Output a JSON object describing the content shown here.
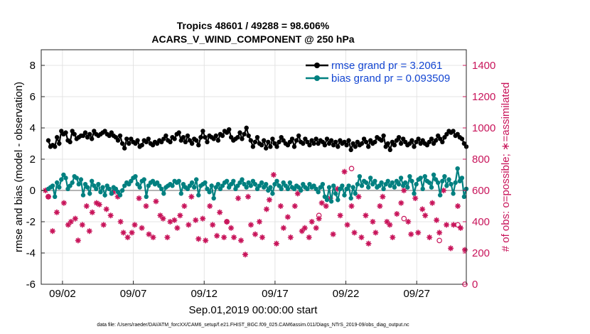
{
  "chart_data": {
    "type": "line",
    "title": [
      "Tropics 48601 / 49288 = 98.606%",
      "ACARS_V_WIND_COMPONENT @ 250 hPa"
    ],
    "xlabel": "Sep.01,2019 00:00:00 start",
    "ylabel": "rmse and bias (model - observation)",
    "y2label": "# of obs: o=possible; ∗=assimilated",
    "footnote": "data file: /Users/raeder/DAI/ATM_forcXX/CAM6_setup/f.e21.FHIST_BGC.f09_025.CAM6assim.011/Diags_NTrS_2019-09/obs_diag_output.nc",
    "xlim": [
      0.5,
      30.5
    ],
    "ylim": [
      -6,
      9
    ],
    "y2lim": [
      0,
      1500
    ],
    "x_ticks": [
      {
        "label": "09/02",
        "value": 2
      },
      {
        "label": "09/07",
        "value": 7
      },
      {
        "label": "09/12",
        "value": 12
      },
      {
        "label": "09/17",
        "value": 17
      },
      {
        "label": "09/22",
        "value": 22
      },
      {
        "label": "09/27",
        "value": 27
      }
    ],
    "y_ticks": [
      -6,
      -4,
      -2,
      0,
      2,
      4,
      6,
      8
    ],
    "y2_ticks": [
      0,
      200,
      400,
      600,
      800,
      1000,
      1200,
      1400
    ],
    "legend": [
      "rmse grand pr = 3.2061",
      "bias grand pr = 0.093509"
    ],
    "colors": {
      "rmse": "#000000",
      "bias": "#008080",
      "obs": "#c8145a",
      "zero": "#b4b4b4",
      "legend_text": "#1446d2"
    },
    "series": [
      {
        "name": "rmse",
        "values": [
          3.2,
          2.8,
          2.9,
          2.8,
          3.4,
          3.0,
          3.8,
          3.6,
          3.7,
          3.2,
          3.1,
          3.8,
          3.6,
          3.3,
          3.4,
          3.5,
          3.5,
          3.7,
          3.4,
          3.6,
          3.3,
          3.8,
          3.6,
          3.5,
          3.6,
          3.7,
          3.8,
          3.6,
          3.5,
          3.7,
          3.5,
          3.4,
          3.2,
          3.5,
          3.0,
          2.7,
          3.3,
          3.0,
          3.3,
          3.1,
          3.0,
          3.2,
          2.8,
          2.9,
          3.2,
          3.1,
          3.3,
          3.0,
          2.9,
          3.1,
          3.0,
          3.2,
          3.1,
          3.3,
          3.5,
          3.2,
          3.1,
          3.4,
          3.3,
          3.6,
          3.7,
          3.2,
          3.4,
          3.1,
          3.5,
          3.2,
          3.0,
          3.3,
          3.2,
          2.9,
          3.4,
          3.8,
          3.4,
          3.1,
          3.5,
          3.4,
          3.3,
          3.5,
          3.2,
          3.6,
          3.5,
          3.8,
          3.7,
          3.9,
          3.4,
          3.2,
          3.3,
          3.4,
          3.7,
          3.3,
          3.6,
          4.0,
          3.5,
          3.2,
          2.8,
          3.1,
          3.4,
          3.0,
          2.9,
          3.2,
          2.7,
          3.1,
          2.8,
          3.3,
          3.0,
          2.8,
          3.1,
          3.4,
          3.2,
          3.0,
          2.9,
          3.1,
          3.3,
          2.8,
          3.2,
          3.5,
          3.1,
          3.0,
          3.3,
          3.1,
          2.9,
          3.2,
          3.0,
          3.3,
          3.0,
          3.2,
          3.1,
          2.9,
          3.3,
          3.0,
          3.2,
          2.9,
          3.1,
          2.8,
          3.2,
          3.0,
          3.1,
          2.9,
          3.2,
          2.6,
          3.0,
          2.8,
          3.1,
          2.9,
          3.0,
          3.3,
          3.1,
          2.8,
          3.2,
          3.0,
          3.1,
          3.4,
          3.3,
          3.2,
          3.5,
          2.8,
          3.0,
          2.6,
          3.1,
          2.9,
          3.2,
          3.4,
          3.0,
          3.3,
          3.1,
          2.9,
          3.0,
          3.2,
          2.8,
          3.1,
          3.3,
          3.0,
          3.2,
          3.0,
          2.9,
          3.1,
          3.3,
          3.0,
          3.2,
          3.5,
          3.3,
          3.1,
          3.4,
          3.6,
          3.8,
          3.7,
          3.8,
          3.5,
          3.6,
          3.4,
          3.3,
          3.0,
          2.8
        ]
      },
      {
        "name": "bias",
        "values": [
          0.1,
          0.2,
          0.3,
          -0.4,
          0.5,
          0.2,
          0.7,
          1.0,
          0.8,
          0.1,
          0.3,
          0.5,
          0.9,
          0.8,
          0.4,
          0.7,
          -0.3,
          0.4,
          0.2,
          -0.2,
          0.6,
          0.3,
          0.1,
          0.4,
          -0.1,
          0.2,
          -0.3,
          0.3,
          0.1,
          -0.2,
          0.2,
          0.1,
          -0.1,
          -0.3,
          0.0,
          0.3,
          0.5,
          0.4,
          0.6,
          0.8,
          0.9,
          0.4,
          0.2,
          0.6,
          0.7,
          -0.4,
          0.3,
          0.5,
          0.6,
          0.4,
          0.5,
          0.3,
          0.1,
          -0.2,
          0.2,
          0.3,
          0.4,
          0.3,
          0.6,
          0.5,
          0.6,
          -0.2,
          0.4,
          0.2,
          0.1,
          0.3,
          0.5,
          0.2,
          0.7,
          -0.3,
          0.3,
          0.4,
          0.5,
          0.1,
          -0.1,
          0.3,
          -0.5,
          0.2,
          0.4,
          0.1,
          0.3,
          0.5,
          0.6,
          0.2,
          0.4,
          0.6,
          0.1,
          0.3,
          0.5,
          0.7,
          0.4,
          0.2,
          0.5,
          0.3,
          0.6,
          0.4,
          0.1,
          0.3,
          0.5,
          0.2,
          0.4,
          0.0,
          0.2,
          -0.2,
          0.4,
          0.6,
          0.3,
          0.1,
          0.5,
          0.3,
          0.1,
          0.5,
          0.2,
          0.1,
          0.3,
          0.2,
          0.0,
          0.4,
          0.2,
          0.1,
          0.4,
          0.2,
          0.3,
          0.1,
          -0.1,
          0.2,
          0.4,
          -0.4,
          -0.6,
          0.2,
          -0.7,
          0.3,
          -0.2,
          -0.6,
          0.1,
          0.3,
          -0.3,
          0.1,
          0.3,
          -0.5,
          0.2,
          -0.2,
          0.4,
          0.9,
          0.3,
          0.6,
          0.5,
          0.2,
          0.8,
          0.4,
          0.6,
          0.2,
          0.3,
          0.5,
          0.1,
          0.4,
          0.6,
          0.3,
          0.5,
          0.2,
          0.6,
          0.4,
          0.8,
          0.3,
          0.5,
          0.2,
          0.9,
          0.6,
          -0.2,
          0.4,
          0.7,
          0.8,
          0.1,
          0.9,
          0.6,
          0.5,
          0.2,
          1.0,
          0.7,
          0.5,
          -0.3,
          0.6,
          0.9,
          0.3,
          0.7,
          0.4,
          -0.2,
          0.5,
          1.4,
          0.6,
          0.8,
          -0.4,
          0.1
        ]
      },
      {
        "name": "obs_assimilated",
        "x": [
          0.8,
          1.0,
          1.3,
          1.6,
          2.1,
          2.4,
          2.6,
          2.9,
          3.1,
          3.4,
          3.7,
          3.9,
          4.1,
          4.4,
          4.6,
          4.9,
          5.1,
          5.4,
          5.6,
          5.9,
          6.1,
          6.3,
          6.6,
          6.9,
          7.1,
          7.4,
          7.6,
          7.9,
          8.1,
          8.4,
          8.6,
          8.9,
          9.1,
          9.4,
          9.6,
          9.9,
          10.1,
          10.3,
          10.6,
          10.9,
          11.1,
          11.4,
          11.6,
          11.9,
          12.1,
          12.4,
          12.6,
          12.9,
          13.1,
          13.4,
          13.6,
          13.9,
          14.1,
          14.4,
          14.6,
          14.9,
          15.1,
          15.3,
          15.6,
          15.9,
          16.1,
          16.4,
          16.6,
          16.9,
          17.1,
          17.4,
          17.6,
          17.9,
          18.1,
          18.4,
          18.6,
          18.9,
          19.1,
          19.4,
          19.6,
          19.9,
          20.1,
          20.3,
          20.6,
          20.9,
          21.1,
          21.4,
          21.6,
          21.9,
          22.1,
          22.4,
          22.6,
          22.9,
          23.1,
          23.4,
          23.6,
          23.9,
          24.1,
          24.4,
          24.6,
          24.9,
          25.1,
          25.3,
          25.6,
          25.9,
          26.1,
          26.4,
          26.6,
          26.9,
          27.1,
          27.4,
          27.6,
          27.9,
          28.1,
          28.4,
          28.6,
          28.9,
          29.1,
          29.4,
          29.6,
          29.9,
          30.1,
          30.4
        ],
        "values": [
          600,
          560,
          340,
          460,
          520,
          380,
          400,
          420,
          280,
          380,
          500,
          340,
          460,
          520,
          510,
          380,
          480,
          440,
          590,
          560,
          400,
          330,
          300,
          330,
          380,
          550,
          360,
          500,
          320,
          300,
          530,
          440,
          420,
          300,
          400,
          410,
          360,
          440,
          500,
          380,
          560,
          410,
          290,
          420,
          280,
          500,
          380,
          310,
          460,
          300,
          400,
          360,
          300,
          550,
          280,
          190,
          560,
          380,
          320,
          400,
          300,
          480,
          540,
          700,
          260,
          500,
          360,
          430,
          300,
          500,
          580,
          340,
          360,
          300,
          400,
          360,
          420,
          520,
          500,
          550,
          320,
          610,
          440,
          720,
          380,
          500,
          330,
          560,
          300,
          440,
          260,
          400,
          330,
          500,
          560,
          400,
          380,
          300,
          450,
          520,
          600,
          400,
          320,
          550,
          330,
          480,
          440,
          300,
          520,
          410,
          330,
          600,
          380,
          230,
          380,
          500,
          360,
          220
        ]
      },
      {
        "name": "obs_possible",
        "x": [
          1.0,
          13.6,
          20.1,
          22.4,
          26.1,
          28.6,
          29.9,
          30.4
        ],
        "values": [
          560,
          400,
          440,
          740,
          420,
          280,
          380,
          0
        ]
      }
    ]
  }
}
